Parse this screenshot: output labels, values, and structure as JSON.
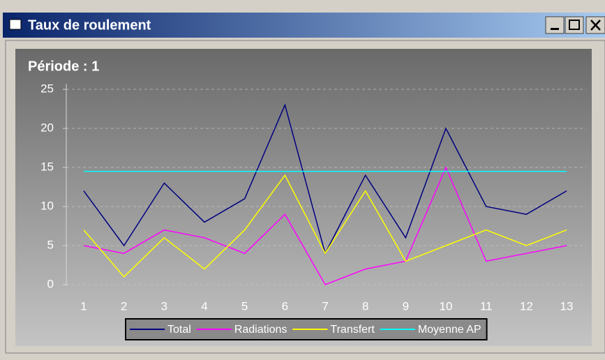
{
  "window": {
    "title": "Taux de roulement"
  },
  "chart_data": {
    "type": "line",
    "title": "Période : 1",
    "categories": [
      "1",
      "2",
      "3",
      "4",
      "5",
      "6",
      "7",
      "8",
      "9",
      "10",
      "11",
      "12",
      "13"
    ],
    "series": [
      {
        "name": "Total",
        "color": "#000080",
        "values": [
          12,
          5,
          13,
          8,
          11,
          23,
          4,
          14,
          6,
          20,
          10,
          9,
          12
        ]
      },
      {
        "name": "Radiations",
        "color": "#ff00ff",
        "values": [
          5,
          4,
          7,
          6,
          4,
          9,
          0,
          2,
          3,
          15,
          3,
          4,
          5
        ]
      },
      {
        "name": "Transfert",
        "color": "#ffff00",
        "values": [
          7,
          1,
          6,
          2,
          7,
          14,
          4,
          12,
          3,
          5,
          7,
          5,
          7
        ]
      },
      {
        "name": "Moyenne AP",
        "color": "#00ffff",
        "values": [
          14.5,
          14.5,
          14.5,
          14.5,
          14.5,
          14.5,
          14.5,
          14.5,
          14.5,
          14.5,
          14.5,
          14.5,
          14.5
        ]
      }
    ],
    "ylim": [
      0,
      25
    ],
    "yticks": [
      0,
      5,
      10,
      15,
      20,
      25
    ],
    "grid": true,
    "legend": "bottom"
  }
}
